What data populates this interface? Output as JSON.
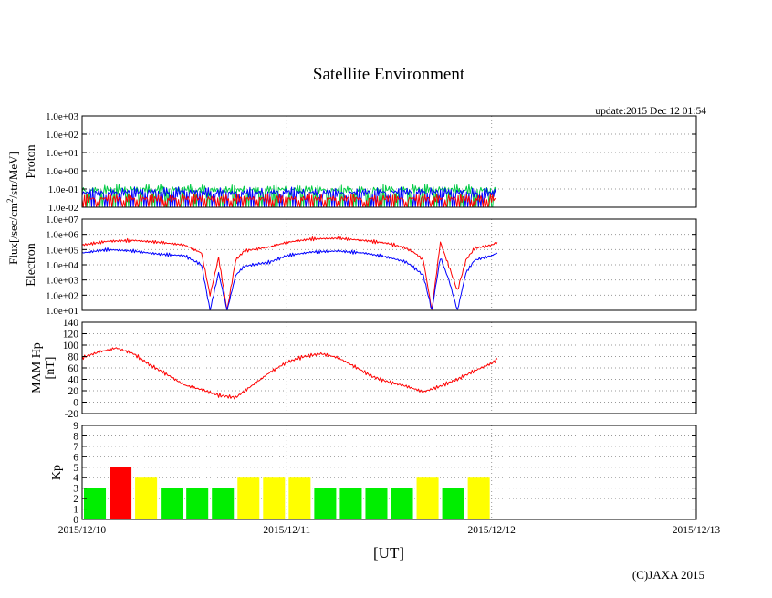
{
  "title": "Satellite Environment",
  "update_text": "update:2015 Dec 12 01:54",
  "copyright": "(C)JAXA 2015",
  "xlabel": "[UT]",
  "x_ticks": [
    "2015/12/10",
    "2015/12/11",
    "2015/12/12",
    "2015/12/13"
  ],
  "flux_label_lines": [
    "Flux[/sec/cm",
    "2",
    "/str/MeV]"
  ],
  "chart_data": [
    {
      "type": "line",
      "panel": "proton",
      "ylabel": "Proton",
      "yscale": "log",
      "ylim": [
        0.01,
        1000
      ],
      "y_ticks": [
        "1.0e-02",
        "1.0e-01",
        "1.0e+00",
        "1.0e+01",
        "1.0e+02",
        "1.0e+03"
      ],
      "xlim": [
        "2015-12-10T00:00",
        "2015-12-13T00:00"
      ],
      "grid": true,
      "series": [
        {
          "color": "#00cc44",
          "x": [
            "2015-12-10T00:00",
            "2015-12-10T06:00",
            "2015-12-10T12:00",
            "2015-12-10T18:00",
            "2015-12-11T00:00",
            "2015-12-11T06:00",
            "2015-12-11T12:00",
            "2015-12-11T18:00",
            "2015-12-12T00:00",
            "2015-12-12T00:30"
          ],
          "values": [
            0.09,
            0.1,
            0.1,
            0.09,
            0.1,
            0.09,
            0.1,
            0.1,
            0.09,
            0.09
          ]
        },
        {
          "color": "#0000ff",
          "x": [
            "2015-12-10T00:00",
            "2015-12-10T06:00",
            "2015-12-10T12:00",
            "2015-12-10T18:00",
            "2015-12-11T00:00",
            "2015-12-11T06:00",
            "2015-12-11T12:00",
            "2015-12-11T18:00",
            "2015-12-12T00:00",
            "2015-12-12T00:30"
          ],
          "values": [
            0.06,
            0.07,
            0.07,
            0.06,
            0.07,
            0.06,
            0.07,
            0.07,
            0.06,
            0.06
          ]
        },
        {
          "color": "#ff0000",
          "x": [
            "2015-12-10T00:00",
            "2015-12-10T06:00",
            "2015-12-10T12:00",
            "2015-12-10T18:00",
            "2015-12-11T00:00",
            "2015-12-11T06:00",
            "2015-12-11T12:00",
            "2015-12-11T18:00",
            "2015-12-12T00:00",
            "2015-12-12T00:30"
          ],
          "values": [
            0.03,
            0.03,
            0.03,
            0.03,
            0.03,
            0.03,
            0.03,
            0.03,
            0.03,
            0.03
          ]
        }
      ]
    },
    {
      "type": "line",
      "panel": "electron",
      "ylabel": "Electron",
      "yscale": "log",
      "ylim": [
        10,
        10000000
      ],
      "y_ticks": [
        "1.0e+01",
        "1.0e+02",
        "1.0e+03",
        "1.0e+04",
        "1.0e+05",
        "1.0e+06",
        "1.0e+07"
      ],
      "xlim": [
        "2015-12-10T00:00",
        "2015-12-13T00:00"
      ],
      "grid": true,
      "series": [
        {
          "color": "#ff0000",
          "x": [
            "2015-12-10T00:00",
            "2015-12-10T03:00",
            "2015-12-10T06:00",
            "2015-12-10T09:00",
            "2015-12-10T12:00",
            "2015-12-10T14:00",
            "2015-12-10T15:00",
            "2015-12-10T16:00",
            "2015-12-10T17:00",
            "2015-12-10T18:00",
            "2015-12-10T19:00",
            "2015-12-10T20:00",
            "2015-12-10T22:00",
            "2015-12-11T00:00",
            "2015-12-11T03:00",
            "2015-12-11T06:00",
            "2015-12-11T09:00",
            "2015-12-11T12:00",
            "2015-12-11T14:00",
            "2015-12-11T15:00",
            "2015-12-11T16:00",
            "2015-12-11T17:00",
            "2015-12-11T18:00",
            "2015-12-11T19:00",
            "2015-12-11T20:00",
            "2015-12-11T21:00",
            "2015-12-11T22:00",
            "2015-12-12T00:00",
            "2015-12-12T00:40"
          ],
          "values": [
            200000,
            350000,
            400000,
            300000,
            200000,
            60000,
            100,
            30000,
            10,
            20000,
            80000,
            100000,
            150000,
            300000,
            500000,
            550000,
            400000,
            250000,
            120000,
            60000,
            20000,
            10,
            300000,
            8000,
            200,
            20000,
            120000,
            200000,
            300000
          ]
        },
        {
          "color": "#0000ff",
          "x": [
            "2015-12-10T00:00",
            "2015-12-10T03:00",
            "2015-12-10T06:00",
            "2015-12-10T09:00",
            "2015-12-10T12:00",
            "2015-12-10T14:00",
            "2015-12-10T15:00",
            "2015-12-10T16:00",
            "2015-12-10T17:00",
            "2015-12-10T18:00",
            "2015-12-10T19:00",
            "2015-12-10T20:00",
            "2015-12-10T22:00",
            "2015-12-11T00:00",
            "2015-12-11T03:00",
            "2015-12-11T06:00",
            "2015-12-11T09:00",
            "2015-12-11T12:00",
            "2015-12-11T14:00",
            "2015-12-11T15:00",
            "2015-12-11T16:00",
            "2015-12-11T17:00",
            "2015-12-11T18:00",
            "2015-12-11T19:00",
            "2015-12-11T20:00",
            "2015-12-11T21:00",
            "2015-12-11T22:00",
            "2015-12-12T00:00",
            "2015-12-12T00:40"
          ],
          "values": [
            60000,
            100000,
            80000,
            50000,
            40000,
            10000,
            10,
            3000,
            10,
            2000,
            8000,
            10000,
            15000,
            40000,
            70000,
            80000,
            60000,
            30000,
            15000,
            6000,
            2000,
            10,
            30000,
            1000,
            10,
            3000,
            20000,
            40000,
            60000
          ]
        }
      ]
    },
    {
      "type": "line",
      "panel": "mam_hp",
      "ylabel": "MAM Hp [nT]",
      "ylabel_lines": [
        "MAM Hp",
        "[nT]"
      ],
      "ylim": [
        -20,
        140
      ],
      "y_ticks": [
        "-20",
        "0",
        "20",
        "40",
        "60",
        "80",
        "100",
        "120",
        "140"
      ],
      "xlim": [
        "2015-12-10T00:00",
        "2015-12-13T00:00"
      ],
      "grid": true,
      "series": [
        {
          "color": "#ff0000",
          "x": [
            "2015-12-10T00:00",
            "2015-12-10T02:00",
            "2015-12-10T04:00",
            "2015-12-10T06:00",
            "2015-12-10T08:00",
            "2015-12-10T10:00",
            "2015-12-10T12:00",
            "2015-12-10T14:00",
            "2015-12-10T16:00",
            "2015-12-10T18:00",
            "2015-12-10T20:00",
            "2015-12-10T22:00",
            "2015-12-11T00:00",
            "2015-12-11T02:00",
            "2015-12-11T04:00",
            "2015-12-11T06:00",
            "2015-12-11T08:00",
            "2015-12-11T10:00",
            "2015-12-11T12:00",
            "2015-12-11T14:00",
            "2015-12-11T16:00",
            "2015-12-11T18:00",
            "2015-12-11T20:00",
            "2015-12-11T22:00",
            "2015-12-12T00:00",
            "2015-12-12T00:40"
          ],
          "values": [
            78,
            88,
            95,
            85,
            65,
            48,
            30,
            22,
            12,
            8,
            30,
            52,
            70,
            80,
            85,
            78,
            62,
            45,
            35,
            28,
            18,
            28,
            40,
            55,
            68,
            75
          ]
        }
      ]
    },
    {
      "type": "bar",
      "panel": "kp",
      "ylabel": "Kp",
      "ylim": [
        0,
        9
      ],
      "y_ticks": [
        "0",
        "1",
        "2",
        "3",
        "4",
        "5",
        "6",
        "7",
        "8",
        "9"
      ],
      "xlim": [
        "2015-12-10T00:00",
        "2015-12-13T00:00"
      ],
      "grid": true,
      "bar_interval_hours": 3,
      "colors": {
        "low": "#00ee00",
        "mid": "#ffff00",
        "high": "#ff0000"
      },
      "categories": [
        "2015-12-10T00:00",
        "2015-12-10T03:00",
        "2015-12-10T06:00",
        "2015-12-10T09:00",
        "2015-12-10T12:00",
        "2015-12-10T15:00",
        "2015-12-10T18:00",
        "2015-12-10T21:00",
        "2015-12-11T00:00",
        "2015-12-11T03:00",
        "2015-12-11T06:00",
        "2015-12-11T09:00",
        "2015-12-11T12:00",
        "2015-12-11T15:00",
        "2015-12-11T18:00",
        "2015-12-11T21:00"
      ],
      "values": [
        3,
        5,
        4,
        3,
        3,
        3,
        4,
        4,
        4,
        3,
        3,
        3,
        3,
        4,
        3,
        4
      ]
    }
  ]
}
